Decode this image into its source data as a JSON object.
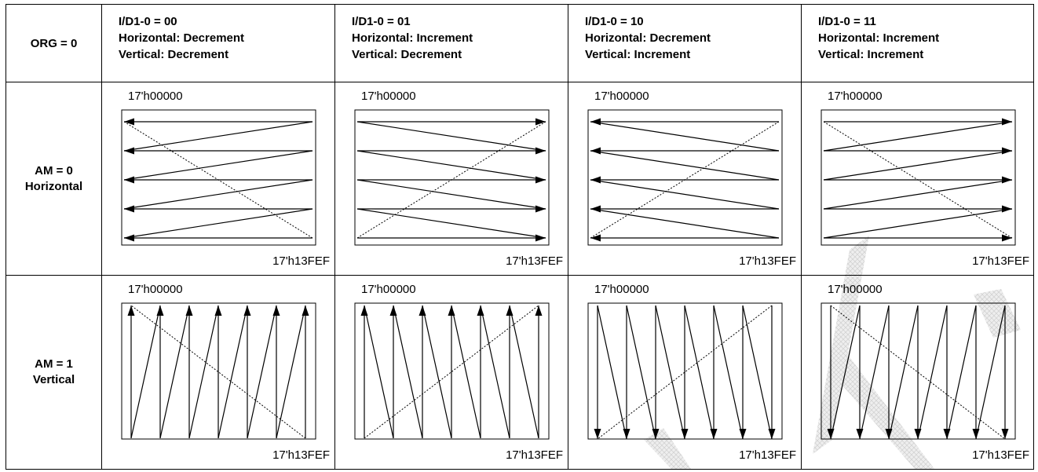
{
  "corner": {
    "label": "ORG = 0"
  },
  "columns": [
    {
      "id": "00",
      "line1": "I/D1-0 = 00",
      "line2": "Horizontal: Decrement",
      "line3": "Vertical: Decrement",
      "h": "dec",
      "v": "dec"
    },
    {
      "id": "01",
      "line1": "I/D1-0 = 01",
      "line2": "Horizontal: Increment",
      "line3": "Vertical: Decrement",
      "h": "inc",
      "v": "dec"
    },
    {
      "id": "10",
      "line1": "I/D1-0 = 10",
      "line2": "Horizontal: Decrement",
      "line3": "Vertical: Increment",
      "h": "dec",
      "v": "inc"
    },
    {
      "id": "11",
      "line1": "I/D1-0 = 11",
      "line2": "Horizontal: Increment",
      "line3": "Vertical: Increment",
      "h": "inc",
      "v": "inc"
    }
  ],
  "rows": [
    {
      "mode": "horizontal",
      "line1": "AM = 0",
      "line2": "Horizontal"
    },
    {
      "mode": "vertical",
      "line1": "AM = 1",
      "line2": "Vertical"
    }
  ],
  "addresses": {
    "start": "17'h00000",
    "end": "17'h13FEF"
  },
  "scan_lines": {
    "horizontal": 5,
    "vertical": 7
  },
  "colors": {
    "line": "#000000",
    "border": "#000000",
    "watermark": "#d3d3d3"
  }
}
